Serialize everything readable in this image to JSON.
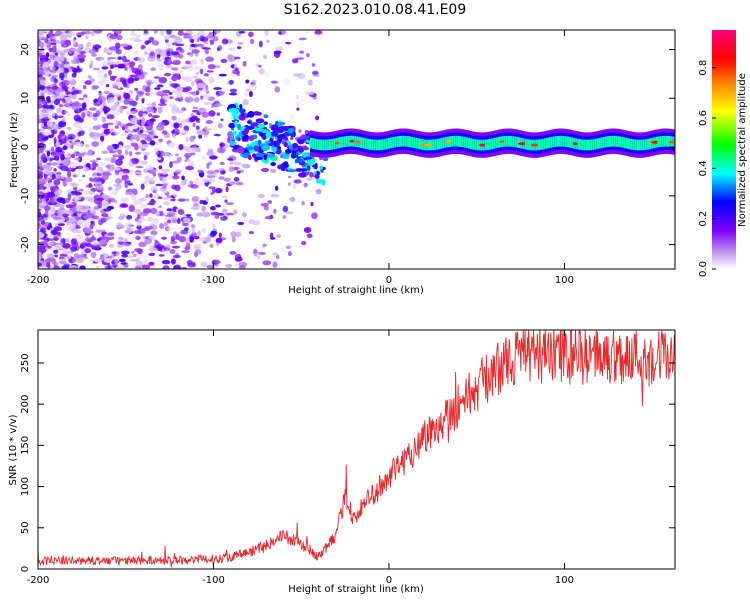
{
  "title": "S162.2023.010.08.41.E09",
  "chart_data": [
    {
      "type": "heatmap",
      "title": "S162.2023.010.08.41.E09",
      "xlabel": "Height of straight line (km)",
      "ylabel": "Frequency (Hz)",
      "xlim": [
        -200,
        163
      ],
      "ylim": [
        -25,
        24
      ],
      "x_ticks": [
        -200,
        -100,
        0,
        100
      ],
      "y_ticks": [
        -20,
        -10,
        0,
        10,
        20
      ],
      "colorbar": {
        "label": "Normalized spectral amplitude",
        "range": [
          0,
          0.95
        ],
        "ticks": [
          0.0,
          0.2,
          0.4,
          0.6,
          0.8
        ],
        "colormap": [
          "#ffffff",
          "#c8a8f0",
          "#8000ff",
          "#0000ff",
          "#00ffff",
          "#00ff00",
          "#ffff00",
          "#ff8000",
          "#ff0000",
          "#ff0080"
        ]
      },
      "features": [
        {
          "name": "noise",
          "x_range": [
            -200,
            -45
          ],
          "freq_range": [
            -25,
            24
          ],
          "amplitude": 0.1
        },
        {
          "name": "signal_line",
          "x_range": [
            -45,
            163
          ],
          "freq": 0.8,
          "amplitude": 0.8
        }
      ],
      "grid": false
    },
    {
      "type": "line",
      "xlabel": "Height of straight line (km)",
      "ylabel": "SNR (10 * v/v)",
      "xlim": [
        -200,
        163
      ],
      "ylim": [
        0,
        290
      ],
      "x_ticks": [
        -200,
        -100,
        0,
        100
      ],
      "y_ticks": [
        0,
        50,
        100,
        150,
        200,
        250
      ],
      "color": "#e8282a",
      "x": [
        -200,
        -150,
        -100,
        -90,
        -80,
        -70,
        -60,
        -50,
        -40,
        -30,
        -25,
        -20,
        -10,
        0,
        10,
        20,
        30,
        40,
        50,
        60,
        70,
        80,
        90,
        100,
        120,
        140,
        163
      ],
      "y": [
        10,
        10,
        12,
        15,
        20,
        30,
        40,
        30,
        15,
        40,
        90,
        60,
        90,
        110,
        135,
        160,
        180,
        200,
        220,
        240,
        255,
        260,
        260,
        258,
        258,
        258,
        258
      ],
      "grid": false
    }
  ]
}
